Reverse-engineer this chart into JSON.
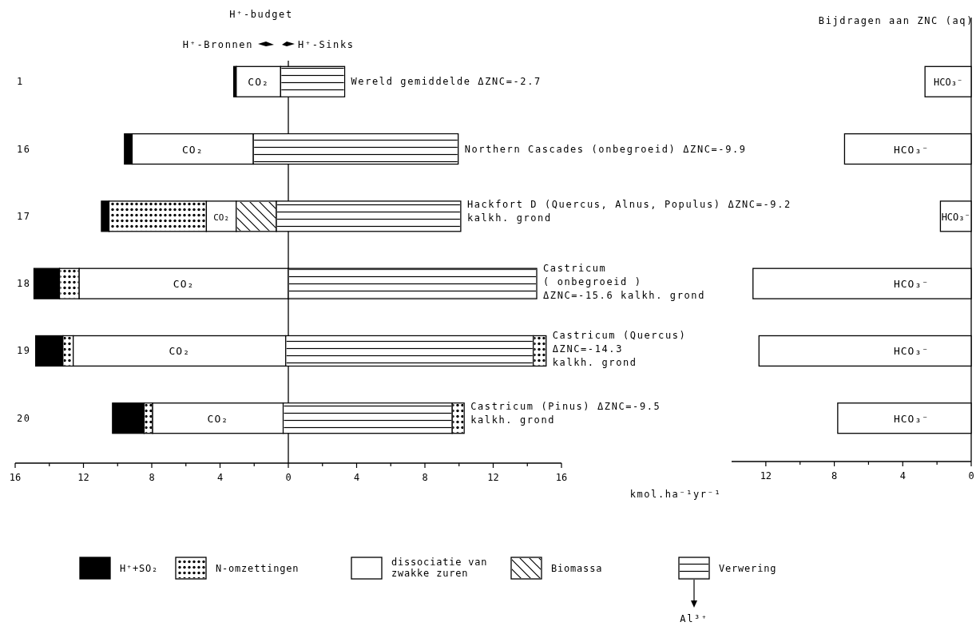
{
  "chart_data": [
    {
      "type": "bar",
      "orientation": "horizontal",
      "title": "H⁺-budget",
      "categories": [
        "1",
        "16",
        "17",
        "18",
        "19",
        "20"
      ],
      "legend": "bottom",
      "xlim": [
        -16,
        16
      ],
      "xticks": [
        {
          "value": -16,
          "label": "16"
        },
        {
          "value": -14,
          "label": null
        },
        {
          "value": -12,
          "label": "12"
        },
        {
          "value": -10,
          "label": null
        },
        {
          "value": -8,
          "label": "8"
        },
        {
          "value": -6,
          "label": null
        },
        {
          "value": -4,
          "label": "4"
        },
        {
          "value": -2,
          "label": null
        },
        0,
        {
          "value": 2,
          "label": null
        },
        4,
        {
          "value": 6,
          "label": null
        },
        8,
        {
          "value": 10,
          "label": null
        },
        12,
        {
          "value": 14,
          "label": null
        },
        16
      ],
      "series": [
        {
          "name": "H⁺+SO₂",
          "color": "#000000",
          "base": [
            -3.2,
            -9.6,
            -10.95,
            -14.9,
            -14.8,
            -10.3
          ],
          "values": [
            0.15,
            0.45,
            0.45,
            1.5,
            1.6,
            1.85
          ]
        },
        {
          "name": "N-omzettingen",
          "color": "#ffffff",
          "base": [
            null,
            null,
            -10.5,
            -13.4,
            -13.2,
            -8.45
          ],
          "values": [
            null,
            null,
            5.7,
            1.15,
            0.6,
            0.5
          ]
        },
        {
          "name": "dissociatie van zwakke zuren",
          "color": "#ffffff",
          "base": [
            -3.05,
            -9.15,
            -4.8,
            -12.25,
            -12.6,
            -7.95
          ],
          "values": [
            2.6,
            7.1,
            1.75,
            12.25,
            12.45,
            7.65
          ]
        },
        {
          "name": "Biomassa",
          "color": "#ffffff",
          "base": [
            null,
            null,
            -3.05,
            null,
            null,
            null
          ],
          "values": [
            null,
            null,
            2.35,
            null,
            null,
            null
          ]
        },
        {
          "name": "Verwering",
          "color": "#ffffff",
          "base": [
            -0.45,
            -2.05,
            -0.7,
            0,
            -0.15,
            -0.3
          ],
          "values": [
            3.75,
            12,
            10.8,
            14.55,
            14.5,
            9.9
          ]
        },
        {
          "color": "#ffffff",
          "base": [
            null,
            null,
            null,
            null,
            14.35,
            9.6
          ],
          "values": [
            null,
            null,
            null,
            null,
            0.75,
            0.7
          ]
        }
      ],
      "annotations": [
        "Wereld gemiddelde ΔZNC=-2.7",
        "Northern Cascades (onbegroeid) ΔZNC=-9.9",
        "Hackfort D (Quercus, Alnus, Populus) ΔZNC=-9.2\nkalkh. grond",
        "Castricum\n( onbegroeid )\nΔZNC=-15.6  kalkh. grond",
        "Castricum (Quercus)\nΔZNC=-14.3\nkalkh. grond",
        "Castricum (Pinus) ΔZNC=-9.5\nkalkh. grond",
        "H⁺-Bronnen",
        "H⁺-Sinks",
        "Al³⁺",
        "CO₂",
        "CO₂",
        "CO₂",
        "CO₂",
        "CO₂",
        "CO₂"
      ]
    },
    {
      "type": "bar",
      "orientation": "horizontal",
      "title": "Bijdragen aan ZNC (aq)",
      "xlabel": "kmol.ha⁻¹yr⁻¹",
      "categories": [
        null,
        null,
        null,
        null,
        null,
        null
      ],
      "tick_labels": "x",
      "xlim": [
        14,
        0
      ],
      "xticks": [
        12,
        {
          "value": 10,
          "label": null
        },
        8,
        {
          "value": 6,
          "label": null
        },
        4,
        {
          "value": 2,
          "label": null
        },
        0
      ],
      "series": [
        {
          "color": "#ffffff",
          "values": [
            2.7,
            7.4,
            1.8,
            12.75,
            12.4,
            7.8
          ]
        }
      ],
      "annotations": [
        "HCO₃⁻",
        "HCO₃⁻",
        "HCO₃⁻",
        "HCO₃⁻",
        "HCO₃⁻",
        "HCO₃⁻"
      ]
    }
  ]
}
